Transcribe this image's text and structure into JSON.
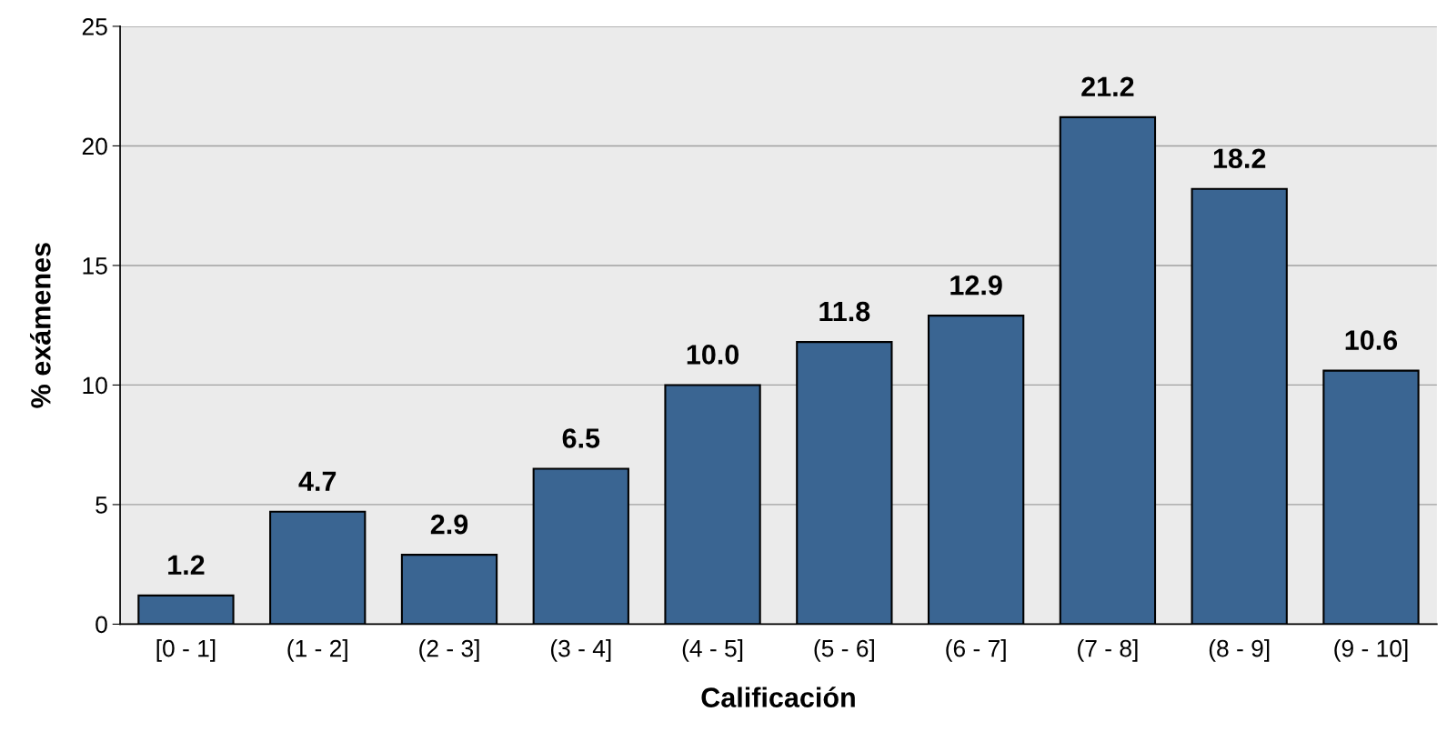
{
  "chart_data": {
    "type": "bar",
    "xlabel": "Calificación",
    "ylabel": "% exámenes",
    "categories": [
      "[0 - 1]",
      "(1 - 2]",
      "(2 - 3]",
      "(3 - 4]",
      "(4 - 5]",
      "(5 - 6]",
      "(6 - 7]",
      "(7 - 8]",
      "(8 - 9]",
      "(9 - 10]"
    ],
    "values": [
      1.2,
      4.7,
      2.9,
      6.5,
      10.0,
      11.8,
      12.9,
      21.2,
      18.2,
      10.6
    ],
    "color": "#3a6592",
    "ylim": [
      0,
      25
    ],
    "yticks": [
      0,
      5,
      10,
      15,
      20,
      25
    ],
    "grid": "y",
    "value_labels": [
      "1.2",
      "4.7",
      "2.9",
      "6.5",
      "10.0",
      "11.8",
      "12.9",
      "21.2",
      "18.2",
      "10.6"
    ]
  }
}
